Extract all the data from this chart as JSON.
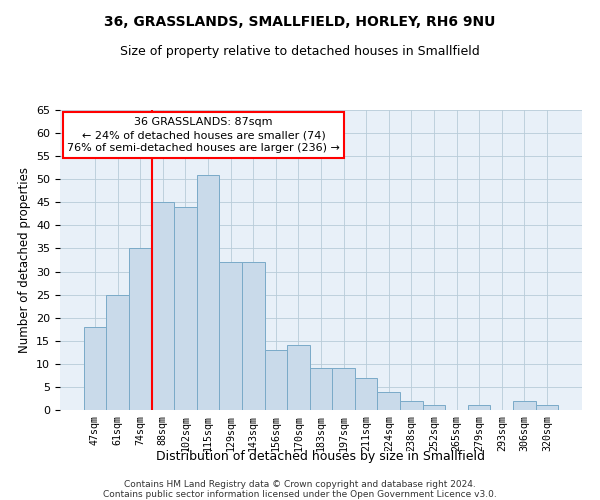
{
  "title": "36, GRASSLANDS, SMALLFIELD, HORLEY, RH6 9NU",
  "subtitle": "Size of property relative to detached houses in Smallfield",
  "xlabel": "Distribution of detached houses by size in Smallfield",
  "ylabel": "Number of detached properties",
  "categories": [
    "47sqm",
    "61sqm",
    "74sqm",
    "88sqm",
    "102sqm",
    "115sqm",
    "129sqm",
    "143sqm",
    "156sqm",
    "170sqm",
    "183sqm",
    "197sqm",
    "211sqm",
    "224sqm",
    "238sqm",
    "252sqm",
    "265sqm",
    "279sqm",
    "293sqm",
    "306sqm",
    "320sqm"
  ],
  "values": [
    18,
    25,
    35,
    45,
    44,
    51,
    32,
    32,
    13,
    14,
    9,
    9,
    7,
    4,
    2,
    1,
    0,
    1,
    0,
    2,
    1
  ],
  "bar_color": "#c9daea",
  "bar_edge_color": "#7aaac8",
  "annotation_text": "36 GRASSLANDS: 87sqm\n← 24% of detached houses are smaller (74)\n76% of semi-detached houses are larger (236) →",
  "annotation_box_facecolor": "white",
  "annotation_box_edgecolor": "red",
  "vline_color": "red",
  "vline_x": 2.5,
  "ylim": [
    0,
    65
  ],
  "yticks": [
    0,
    5,
    10,
    15,
    20,
    25,
    30,
    35,
    40,
    45,
    50,
    55,
    60,
    65
  ],
  "grid_color": "#b8ccd8",
  "background_color": "#e8f0f8",
  "footer_line1": "Contains HM Land Registry data © Crown copyright and database right 2024.",
  "footer_line2": "Contains public sector information licensed under the Open Government Licence v3.0."
}
